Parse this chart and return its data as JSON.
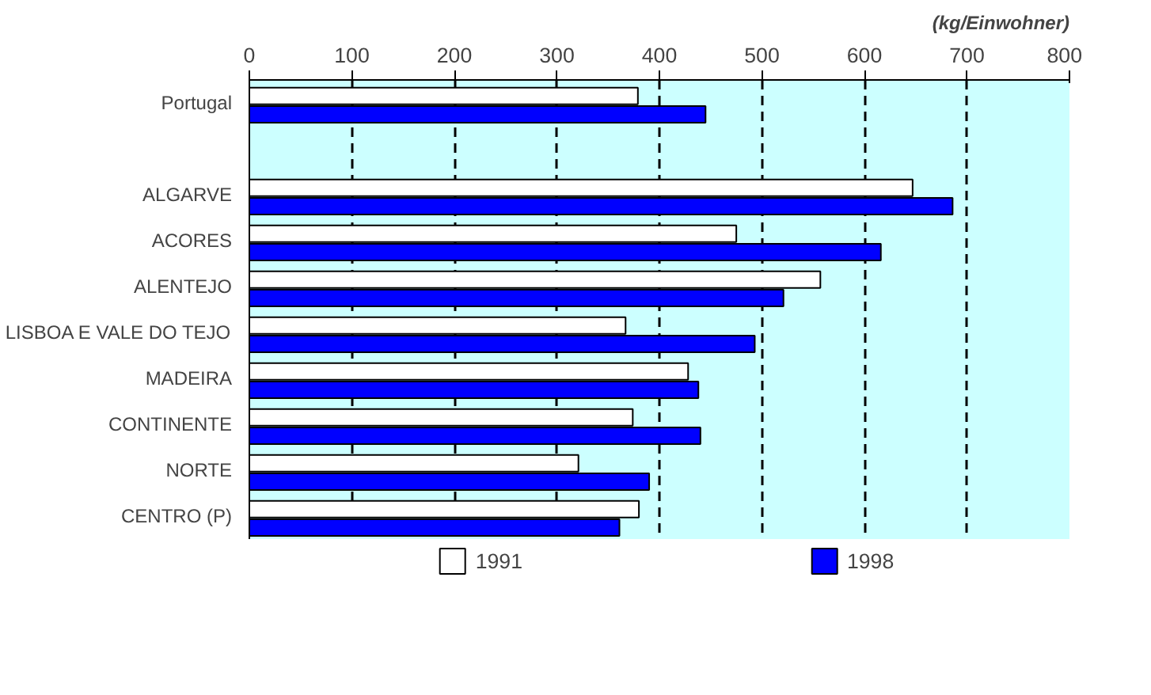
{
  "chart_data": {
    "type": "bar",
    "orientation": "horizontal",
    "categories": [
      "Portugal",
      null,
      "ALGARVE",
      "ACORES",
      "ALENTEJO",
      "LISBOA E VALE DO TEJO",
      "MADEIRA",
      "CONTINENTE",
      "NORTE",
      "CENTRO (P)"
    ],
    "series": [
      {
        "name": "1991",
        "color": "#ffffff",
        "values": [
          379,
          null,
          647,
          475,
          557,
          367,
          428,
          374,
          321,
          380
        ]
      },
      {
        "name": "1998",
        "color": "#0000ff",
        "values": [
          445,
          null,
          686,
          616,
          521,
          493,
          438,
          440,
          390,
          361
        ]
      }
    ],
    "xlim": [
      0,
      800
    ],
    "xticks": [
      0,
      100,
      200,
      300,
      400,
      500,
      600,
      700,
      800
    ],
    "grid": "x",
    "legend": "bottom",
    "line_style": "dashed",
    "annotations": [
      "(kg/Einwohner)"
    ]
  }
}
